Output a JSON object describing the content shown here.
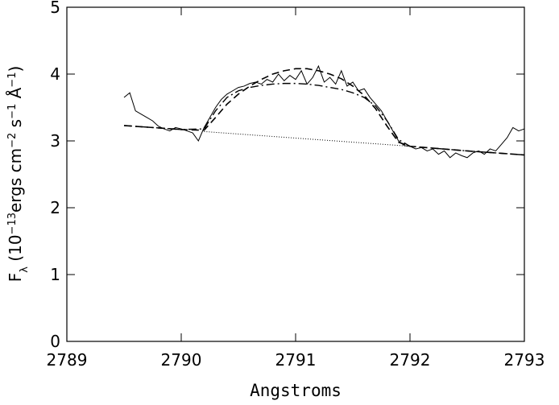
{
  "chart_data": {
    "type": "line",
    "x_label": "Angstroms",
    "y_label": [
      {
        "text": "F"
      },
      {
        "sub": "λ"
      },
      {
        "text": " (10"
      },
      {
        "sup": "−13"
      },
      {
        "text": "ergs cm"
      },
      {
        "sup": "−2"
      },
      {
        "text": " s"
      },
      {
        "sup": "−1"
      },
      {
        "text": " Å"
      },
      {
        "sup": "−1"
      },
      {
        "text": ")"
      }
    ],
    "xlim": [
      2789,
      2793
    ],
    "xticks": [
      2789,
      2790,
      2791,
      2792,
      2793
    ],
    "ylim": [
      0,
      5
    ],
    "yticks": [
      0,
      1,
      2,
      3,
      4,
      5
    ],
    "series": [
      {
        "style": "solid",
        "color": "#000000",
        "width": 1,
        "x": [
          2789.5,
          2789.55,
          2789.6,
          2789.65,
          2789.7,
          2789.75,
          2789.8,
          2789.85,
          2789.9,
          2789.95,
          2790,
          2790.05,
          2790.1,
          2790.15,
          2790.2,
          2790.25,
          2790.3,
          2790.35,
          2790.4,
          2790.45,
          2790.5,
          2790.55,
          2790.6,
          2790.65,
          2790.7,
          2790.75,
          2790.8,
          2790.85,
          2790.9,
          2790.95,
          2791,
          2791.05,
          2791.1,
          2791.15,
          2791.2,
          2791.25,
          2791.3,
          2791.35,
          2791.4,
          2791.45,
          2791.5,
          2791.55,
          2791.6,
          2791.65,
          2791.7,
          2791.75,
          2791.8,
          2791.85,
          2791.9,
          2791.95,
          2792,
          2792.05,
          2792.1,
          2792.15,
          2792.2,
          2792.25,
          2792.3,
          2792.35,
          2792.4,
          2792.45,
          2792.5,
          2792.55,
          2792.6,
          2792.65,
          2792.7,
          2792.75,
          2792.8,
          2792.85,
          2792.9,
          2792.95,
          2793
        ],
        "values": [
          3.65,
          3.72,
          3.45,
          3.4,
          3.35,
          3.3,
          3.22,
          3.18,
          3.15,
          3.2,
          3.18,
          3.15,
          3.12,
          3.0,
          3.2,
          3.35,
          3.5,
          3.62,
          3.7,
          3.75,
          3.8,
          3.82,
          3.86,
          3.88,
          3.85,
          3.92,
          3.88,
          4.0,
          3.9,
          3.98,
          3.92,
          4.05,
          3.85,
          3.95,
          4.12,
          3.88,
          3.95,
          3.85,
          4.05,
          3.82,
          3.88,
          3.75,
          3.78,
          3.65,
          3.55,
          3.45,
          3.3,
          3.15,
          3.0,
          2.93,
          2.92,
          2.88,
          2.9,
          2.85,
          2.88,
          2.8,
          2.85,
          2.75,
          2.82,
          2.78,
          2.75,
          2.82,
          2.85,
          2.8,
          2.88,
          2.85,
          2.95,
          3.05,
          3.2,
          3.15,
          3.18
        ]
      },
      {
        "style": "dashed",
        "color": "#000000",
        "width": 1.6,
        "x": [
          2789.5,
          2790,
          2790.2,
          2790.3,
          2790.4,
          2790.5,
          2790.6,
          2790.7,
          2790.8,
          2790.9,
          2791,
          2791.1,
          2791.2,
          2791.3,
          2791.4,
          2791.5,
          2791.6,
          2791.7,
          2791.8,
          2791.9,
          2792,
          2792.5,
          2793
        ],
        "values": [
          3.23,
          3.17,
          3.16,
          3.35,
          3.55,
          3.7,
          3.82,
          3.92,
          4.0,
          4.05,
          4.08,
          4.08,
          4.05,
          4.0,
          3.93,
          3.82,
          3.68,
          3.48,
          3.22,
          2.98,
          2.92,
          2.85,
          2.79
        ]
      },
      {
        "style": "dashdot",
        "color": "#000000",
        "width": 1.4,
        "x": [
          2789.5,
          2790,
          2790.2,
          2790.3,
          2790.4,
          2790.5,
          2790.6,
          2790.7,
          2790.8,
          2790.9,
          2791,
          2791.1,
          2791.2,
          2791.3,
          2791.4,
          2791.5,
          2791.6,
          2791.7,
          2791.8,
          2791.9,
          2792,
          2792.5,
          2793
        ],
        "values": [
          3.23,
          3.17,
          3.18,
          3.45,
          3.65,
          3.75,
          3.8,
          3.83,
          3.85,
          3.86,
          3.86,
          3.85,
          3.83,
          3.8,
          3.77,
          3.72,
          3.65,
          3.52,
          3.3,
          3.02,
          2.92,
          2.85,
          2.79
        ]
      },
      {
        "style": "dotted",
        "color": "#000000",
        "width": 1,
        "x": [
          2790.2,
          2792
        ],
        "values": [
          3.14,
          2.92
        ]
      }
    ]
  }
}
